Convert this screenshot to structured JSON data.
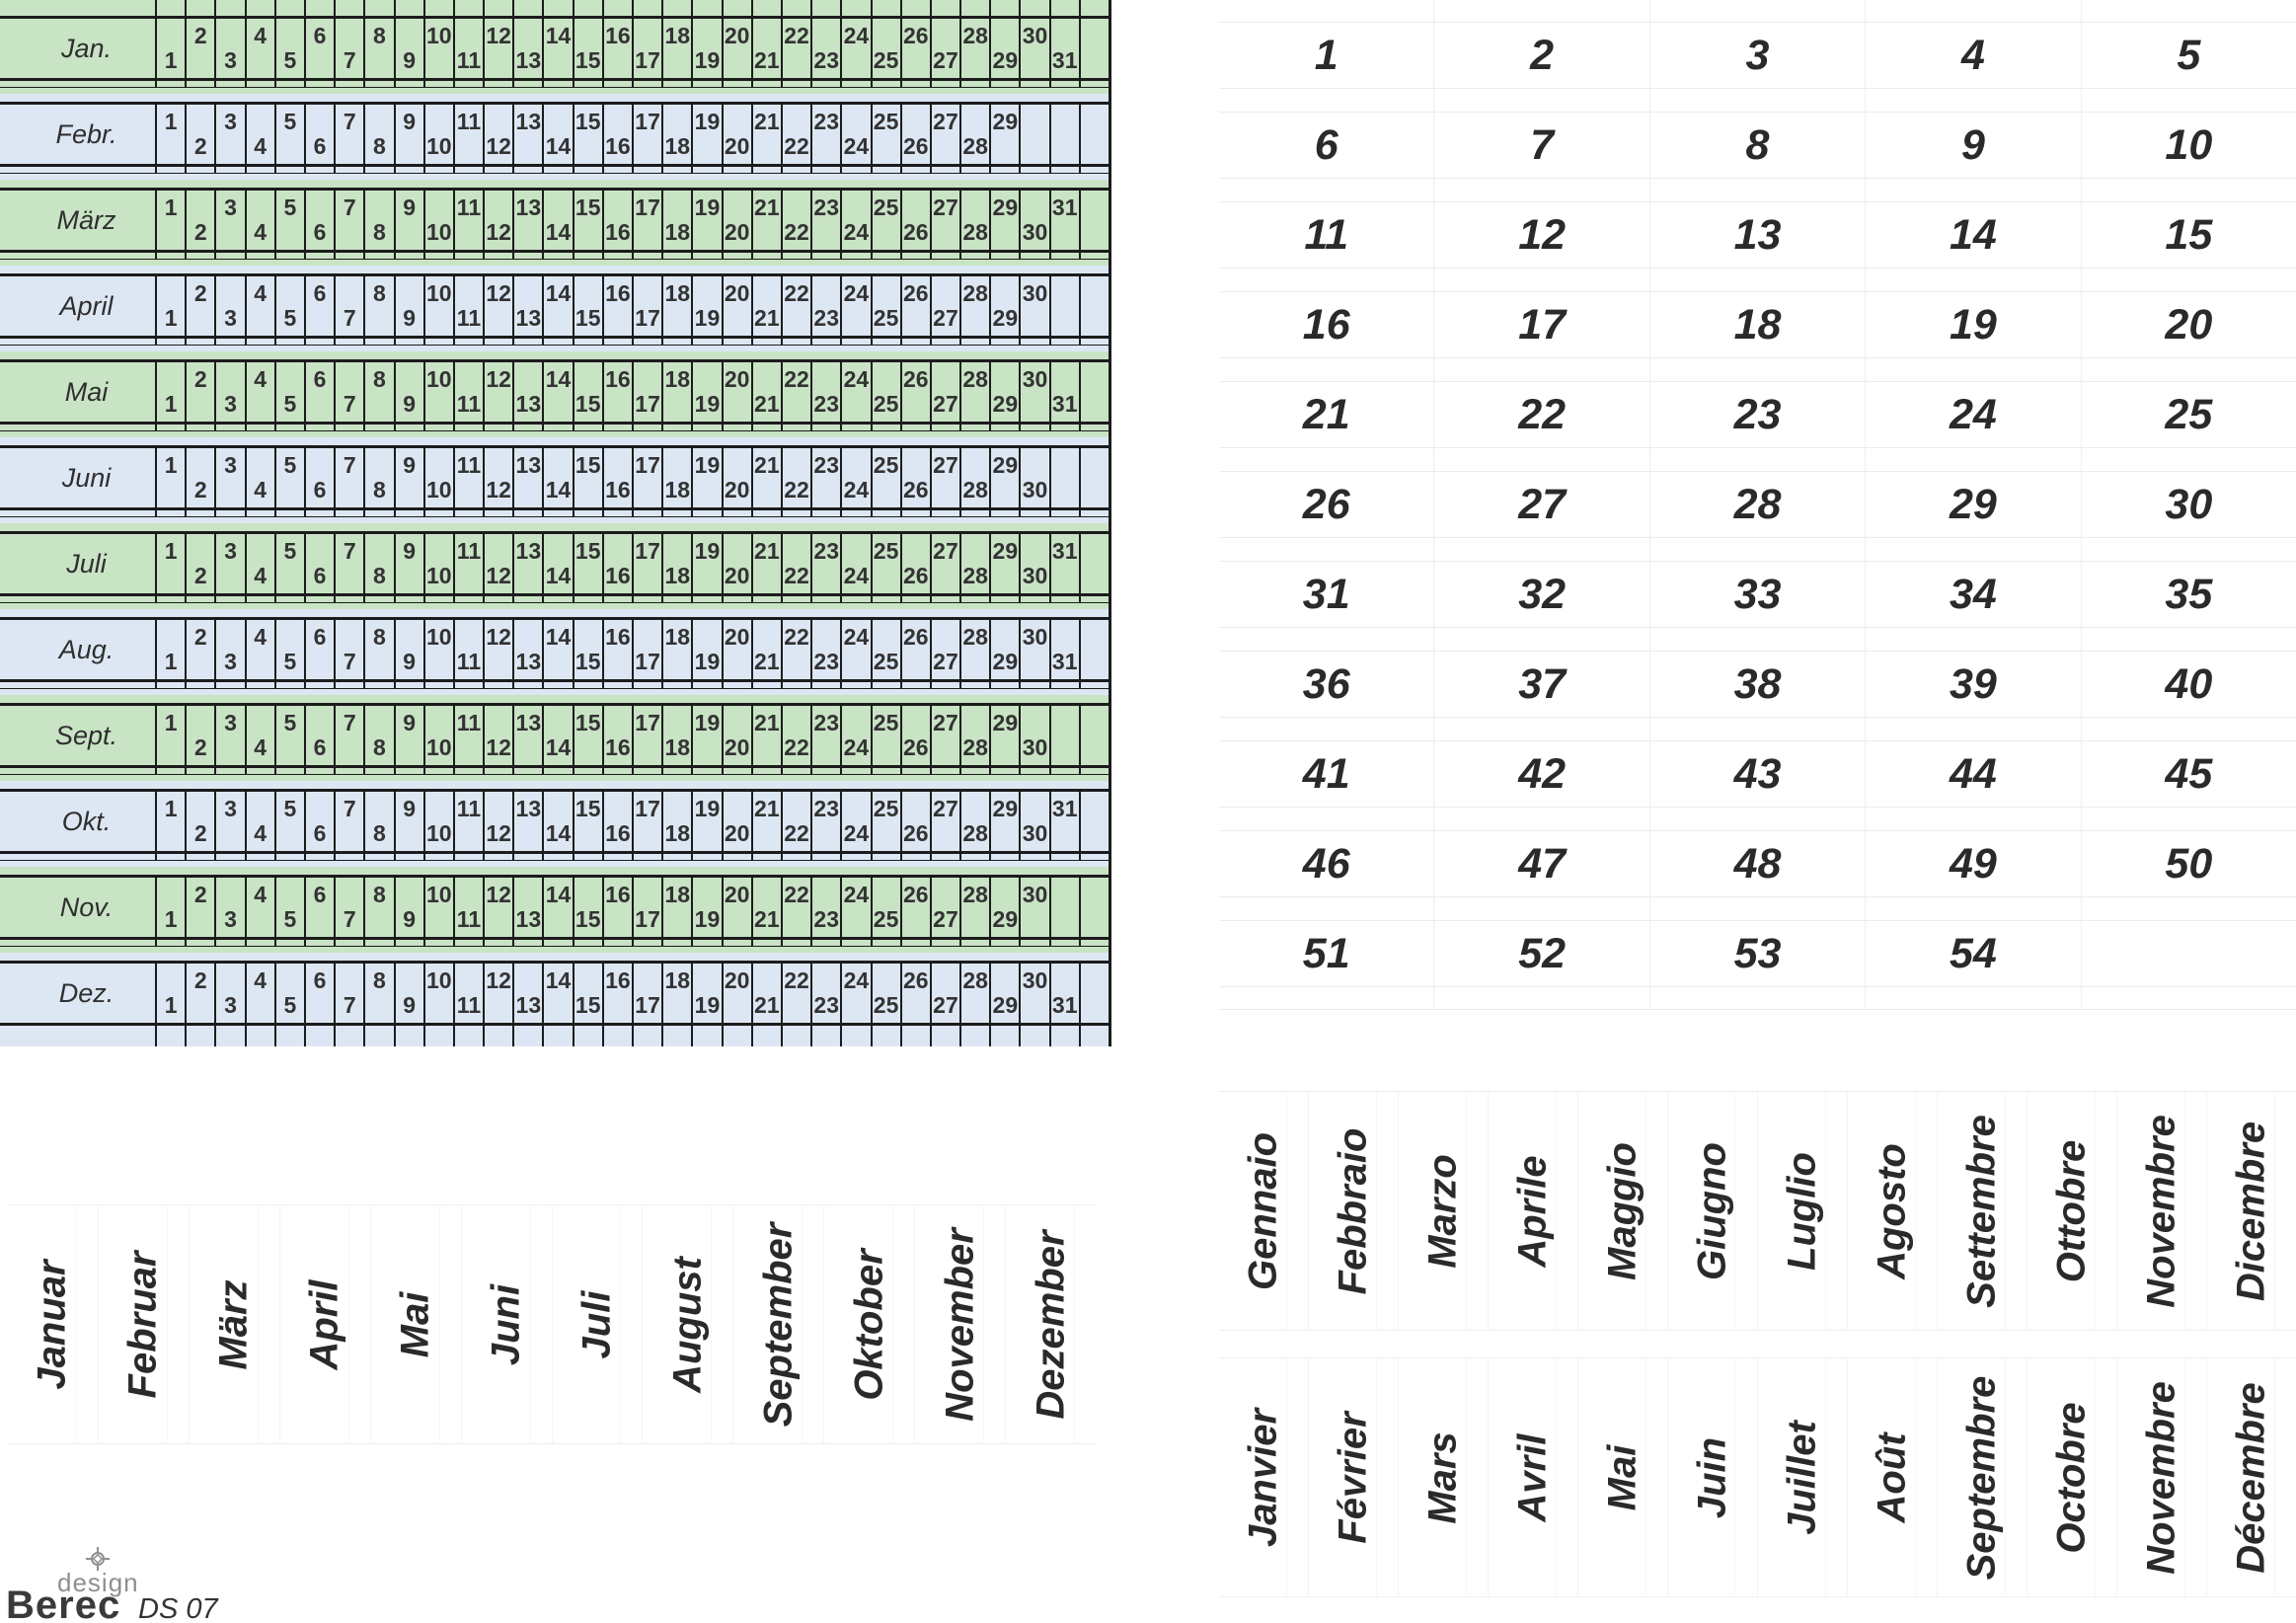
{
  "colors": {
    "green": "#c9e3c5",
    "blue": "#dde7f4",
    "line": "#1c1c1c",
    "faint": "#ececec",
    "text": "#2f2f2f"
  },
  "calendar": {
    "day_columns": 32,
    "months": [
      {
        "label": "Jan.",
        "days": 31,
        "first": "low"
      },
      {
        "label": "Febr.",
        "days": 29,
        "first": "high"
      },
      {
        "label": "März",
        "days": 31,
        "first": "high"
      },
      {
        "label": "April",
        "days": 30,
        "first": "low"
      },
      {
        "label": "Mai",
        "days": 31,
        "first": "low"
      },
      {
        "label": "Juni",
        "days": 30,
        "first": "high"
      },
      {
        "label": "Juli",
        "days": 31,
        "first": "high"
      },
      {
        "label": "Aug.",
        "days": 31,
        "first": "low"
      },
      {
        "label": "Sept.",
        "days": 30,
        "first": "high"
      },
      {
        "label": "Okt.",
        "days": 31,
        "first": "high"
      },
      {
        "label": "Nov.",
        "days": 30,
        "first": "low"
      },
      {
        "label": "Dez.",
        "days": 31,
        "first": "low"
      }
    ]
  },
  "week_grid": {
    "rows": [
      [
        1,
        2,
        3,
        4,
        5
      ],
      [
        6,
        7,
        8,
        9,
        10
      ],
      [
        11,
        12,
        13,
        14,
        15
      ],
      [
        16,
        17,
        18,
        19,
        20
      ],
      [
        21,
        22,
        23,
        24,
        25
      ],
      [
        26,
        27,
        28,
        29,
        30
      ],
      [
        31,
        32,
        33,
        34,
        35
      ],
      [
        36,
        37,
        38,
        39,
        40
      ],
      [
        41,
        42,
        43,
        44,
        45
      ],
      [
        46,
        47,
        48,
        49,
        50
      ],
      [
        51,
        52,
        53,
        54,
        null
      ]
    ]
  },
  "month_names": {
    "german": [
      "Januar",
      "Februar",
      "März",
      "April",
      "Mai",
      "Juni",
      "Juli",
      "August",
      "September",
      "Oktober",
      "November",
      "Dezember"
    ],
    "italian": [
      "Gennaio",
      "Febbraio",
      "Marzo",
      "Aprile",
      "Maggio",
      "Giugno",
      "Luglio",
      "Agosto",
      "Settembre",
      "Ottobre",
      "Novembre",
      "Dicembre"
    ],
    "french": [
      "Janvier",
      "Février",
      "Mars",
      "Avril",
      "Mai",
      "Juin",
      "Juillet",
      "Août",
      "Septembre",
      "Octobre",
      "Novembre",
      "Décembre"
    ]
  },
  "logo": {
    "design_label": "design",
    "brand": "Berec",
    "code": "DS 07"
  }
}
